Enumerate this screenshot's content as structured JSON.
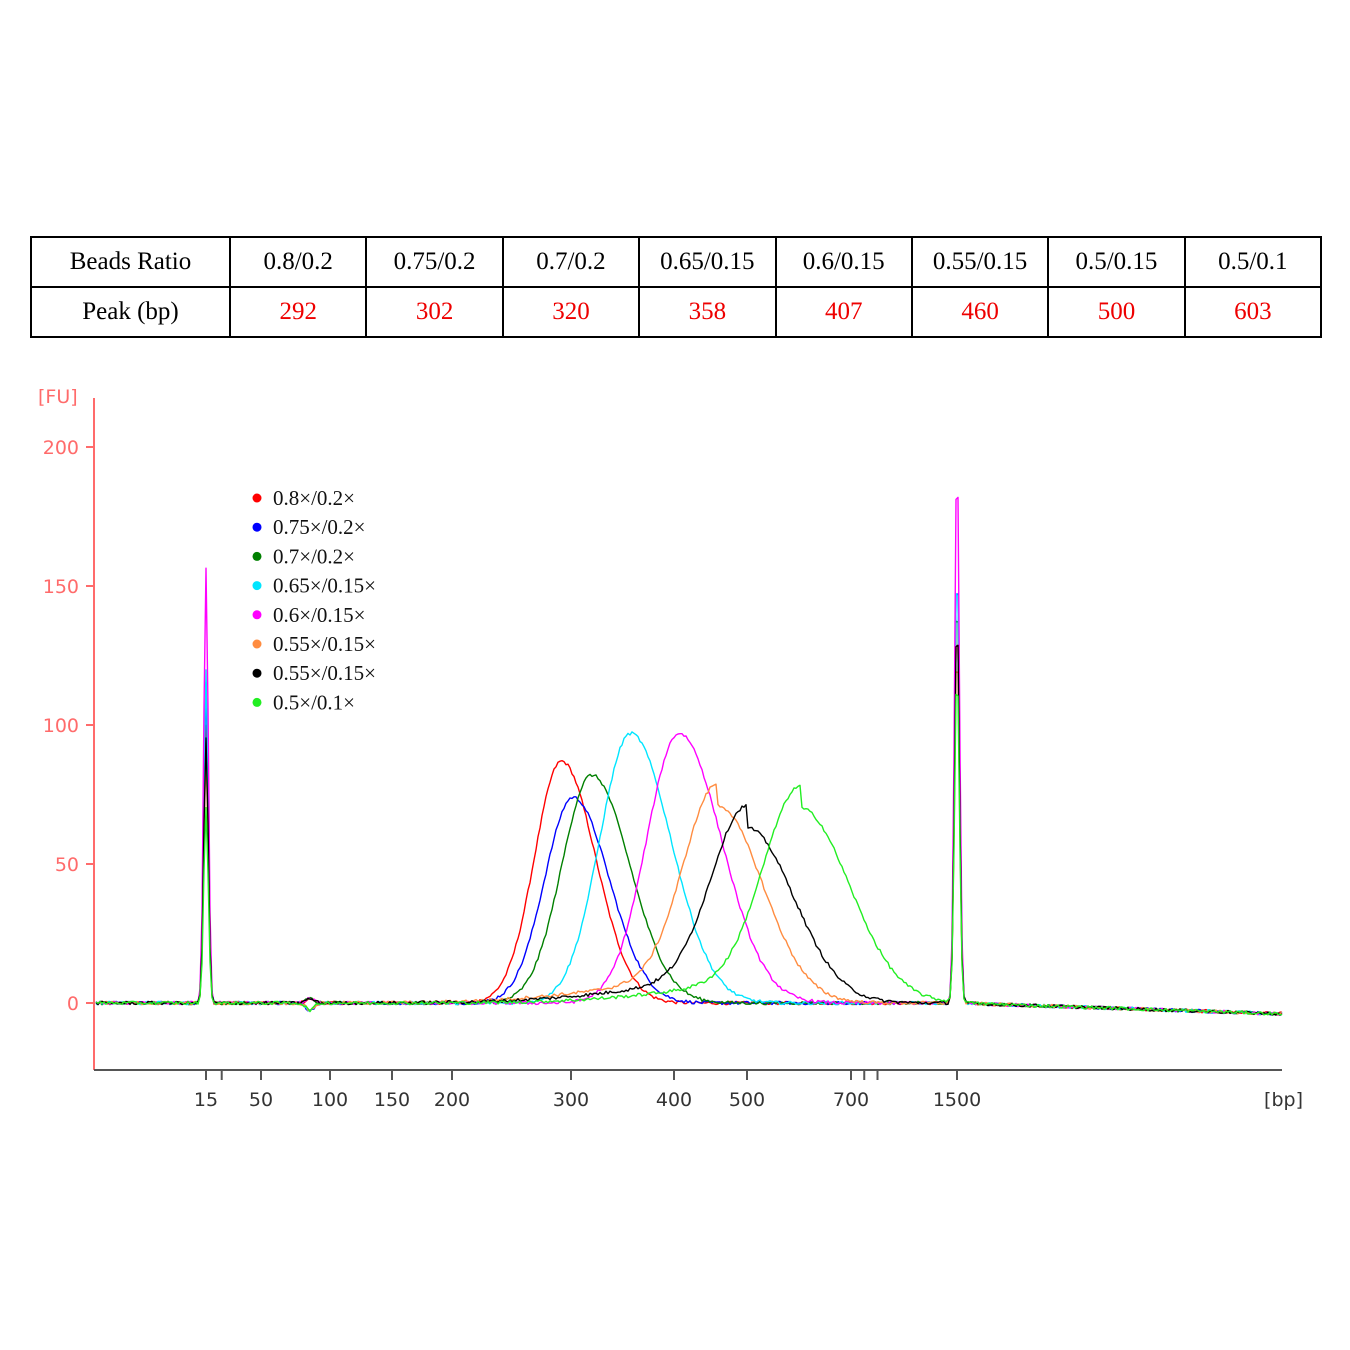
{
  "table": {
    "row_headers": [
      "Beads Ratio",
      "Peak (bp)"
    ],
    "columns": [
      {
        "ratio": "0.8/0.2",
        "peak": "292"
      },
      {
        "ratio": "0.75/0.2",
        "peak": "302"
      },
      {
        "ratio": "0.7/0.2",
        "peak": "320"
      },
      {
        "ratio": "0.65/0.15",
        "peak": "358"
      },
      {
        "ratio": "0.6/0.15",
        "peak": "407"
      },
      {
        "ratio": "0.55/0.15",
        "peak": "460"
      },
      {
        "ratio": "0.5/0.15",
        "peak": "500"
      },
      {
        "ratio": "0.5/0.1",
        "peak": "603"
      }
    ]
  },
  "chart_data": {
    "type": "line",
    "title": "",
    "ylabel": "[FU]",
    "xlabel": "[bp]",
    "ylim": [
      -25,
      210
    ],
    "y_ticks": [
      "200",
      "150",
      "100",
      "50",
      "0"
    ],
    "y_tick_values": [
      200,
      150,
      100,
      50,
      0
    ],
    "x_ticks": [
      "15",
      "50",
      "100",
      "150",
      "200",
      "300",
      "400",
      "500",
      "700",
      "1500"
    ],
    "x_tick_values": [
      15,
      50,
      100,
      150,
      200,
      300,
      400,
      500,
      700,
      1500
    ],
    "grid": false,
    "legend": "top-left",
    "axis_color": "#ff6b6b",
    "tick_label_color": "#333333",
    "marker_values": [
      15,
      1500
    ],
    "series": [
      {
        "name": "0.8×/0.2×",
        "color": "#ff0000",
        "peak_bp": 292,
        "peak_fu": 87,
        "lower_marker_fu": 100,
        "upper_marker_fu": 140
      },
      {
        "name": "0.75×/0.2×",
        "color": "#0000ff",
        "peak_bp": 302,
        "peak_fu": 74,
        "lower_marker_fu": 115,
        "upper_marker_fu": 160
      },
      {
        "name": "0.7×/0.2×",
        "color": "#008000",
        "peak_bp": 320,
        "peak_fu": 82,
        "lower_marker_fu": 95,
        "upper_marker_fu": 150
      },
      {
        "name": "0.65×/0.15×",
        "color": "#00e5ff",
        "peak_bp": 358,
        "peak_fu": 97,
        "lower_marker_fu": 120,
        "upper_marker_fu": 160
      },
      {
        "name": "0.6×/0.15×",
        "color": "#ff00ff",
        "peak_bp": 407,
        "peak_fu": 97,
        "lower_marker_fu": 157,
        "upper_marker_fu": 198
      },
      {
        "name": "0.55×/0.15×",
        "color": "#ff8c40",
        "peak_bp": 460,
        "peak_fu": 71,
        "lower_marker_fu": 90,
        "upper_marker_fu": 130
      },
      {
        "name": "0.55×/0.15×",
        "color": "#000000",
        "peak_bp": 500,
        "peak_fu": 63,
        "lower_marker_fu": 95,
        "upper_marker_fu": 140
      },
      {
        "name": "0.5×/0.1×",
        "color": "#22ee22",
        "peak_bp": 603,
        "peak_fu": 70,
        "lower_marker_fu": 70,
        "upper_marker_fu": 120
      }
    ]
  }
}
